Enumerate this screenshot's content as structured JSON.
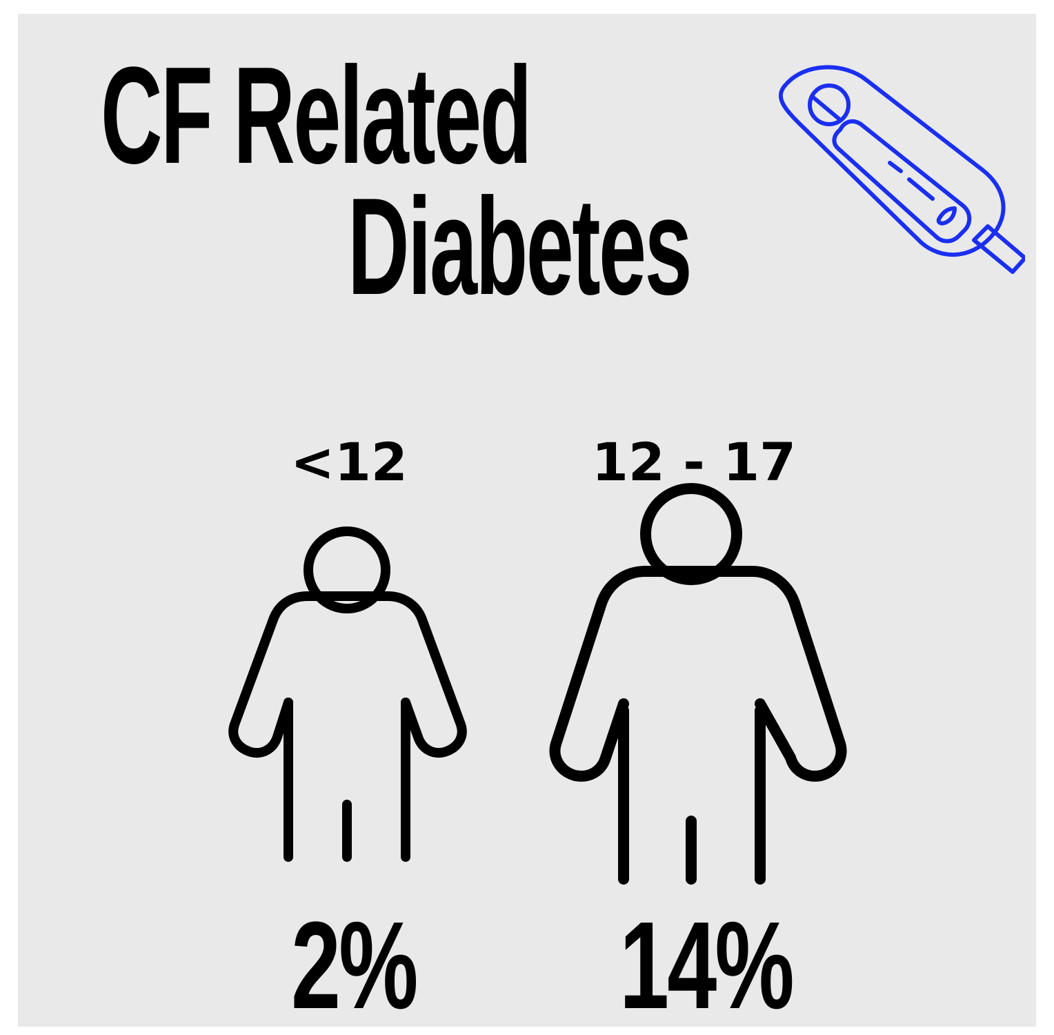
{
  "title": {
    "line1": "CF Related",
    "line2": "Diabetes"
  },
  "icons": {
    "header": "glucose-meter-icon",
    "person": "person-icon"
  },
  "colors": {
    "background": "#e9e9e9",
    "text": "#000000",
    "accent": "#1a2ff0"
  },
  "groups": [
    {
      "age": "<12",
      "percent": "2%"
    },
    {
      "age": "12 - 17",
      "percent": "14%"
    }
  ]
}
